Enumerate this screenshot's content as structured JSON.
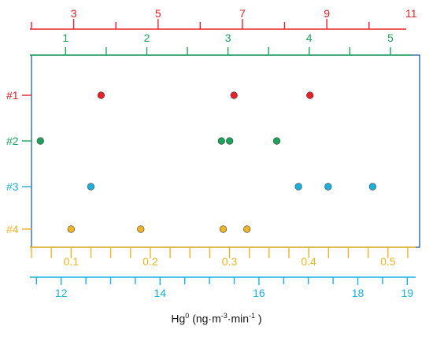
{
  "chart_data": {
    "type": "scatter",
    "xlabel": "Hg0 (ng·m-3·min-1 )",
    "axes": [
      {
        "id": "axis-1",
        "color": "#e8202a",
        "range": [
          2,
          11.2
        ],
        "tick_step": 1,
        "labels": [
          3,
          5,
          7,
          9,
          11
        ]
      },
      {
        "id": "axis-2",
        "color": "#1aa35a",
        "range": [
          0.58,
          5.36
        ],
        "tick_step": 0.5,
        "labels": [
          1,
          2,
          3,
          4,
          5
        ]
      },
      {
        "id": "axis-3",
        "color": "#1ab0dc",
        "range": [
          11.4,
          19.25
        ],
        "tick_step": 0.5,
        "labels": [
          12,
          14,
          16,
          18,
          19
        ]
      },
      {
        "id": "axis-4",
        "color": "#f0b424",
        "range": [
          0.05,
          0.54
        ],
        "tick_step": 0.025,
        "labels": [
          0.1,
          0.2,
          0.3,
          0.4,
          0.5
        ]
      }
    ],
    "series": [
      {
        "name": "#1",
        "axis": "axis-1",
        "color": "#e8202a",
        "x": [
          3.65,
          6.8,
          8.6
        ]
      },
      {
        "name": "#2",
        "axis": "axis-2",
        "color": "#1aa35a",
        "x": [
          0.69,
          2.92,
          3.02,
          3.6
        ]
      },
      {
        "name": "#3",
        "axis": "axis-3",
        "color": "#1ab0dc",
        "x": [
          12.6,
          16.8,
          17.4,
          18.3
        ]
      },
      {
        "name": "#4",
        "axis": "axis-4",
        "color": "#f0b424",
        "x": [
          0.1,
          0.188,
          0.292,
          0.322
        ]
      }
    ]
  }
}
